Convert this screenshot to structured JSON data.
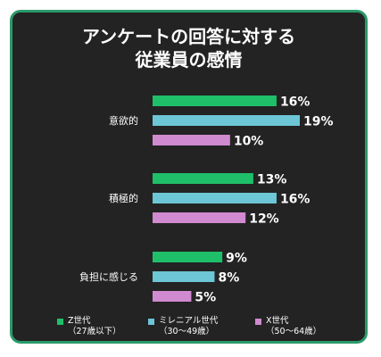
{
  "title": {
    "line1": "アンケートの回答に対する",
    "line2": "従業員の感情"
  },
  "colors": {
    "background": "#232323",
    "border": "#2a9a6a",
    "gen_z": "#1fbf6a",
    "millennial": "#6cc6d6",
    "gen_x": "#d08ad0"
  },
  "chart_data": {
    "type": "bar",
    "orientation": "horizontal",
    "categories": [
      "意欲的",
      "積極的",
      "負担に感じる"
    ],
    "series": [
      {
        "name": "Z世代（27歳以下）",
        "color": "#1fbf6a",
        "values": [
          16,
          13,
          9
        ]
      },
      {
        "name": "ミレニアル世代（30〜49歳）",
        "color": "#6cc6d6",
        "values": [
          19,
          16,
          8
        ]
      },
      {
        "name": "X世代（50〜64歳）",
        "color": "#d08ad0",
        "values": [
          10,
          12,
          5
        ]
      }
    ],
    "value_suffix": "%",
    "xlim": [
      0,
      19
    ],
    "grid": false,
    "legend": "bottom"
  },
  "legend": {
    "items": [
      {
        "line1": "Z世代",
        "line2": "（27歳以下）"
      },
      {
        "line1": "ミレニアル世代",
        "line2": "（30〜49歳）"
      },
      {
        "line1": "X世代",
        "line2": "（50〜64歳）"
      }
    ]
  }
}
